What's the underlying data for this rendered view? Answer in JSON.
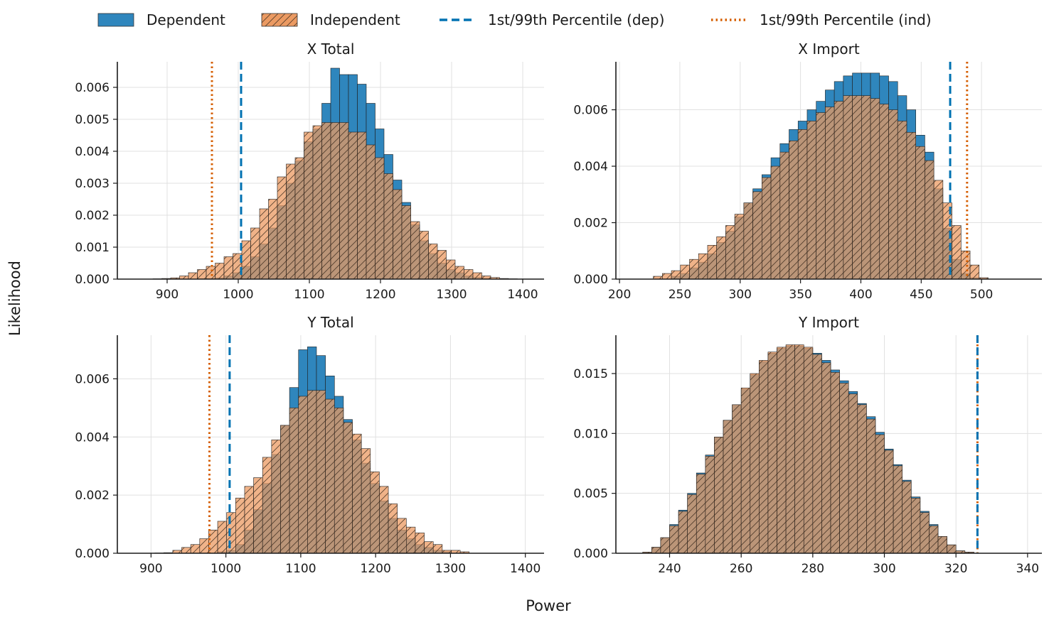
{
  "figure": {
    "xlabel": "Power",
    "ylabel": "Likelihood"
  },
  "legend": [
    {
      "label": "Dependent",
      "kind": "bar",
      "color": "#2f86bd"
    },
    {
      "label": "Independent",
      "kind": "hatched-bar",
      "color": "#eb9a62"
    },
    {
      "label": "1st/99th Percentile (dep)",
      "kind": "dashed-line",
      "color": "#0072b2"
    },
    {
      "label": "1st/99th Percentile (ind)",
      "kind": "dotted-line",
      "color": "#d55e00"
    }
  ],
  "colors": {
    "dependent": "#2f86bd",
    "independent": "#eb9a62",
    "overlap": "#8c6a4d",
    "dep_line": "#0072b2",
    "ind_line": "#d55e00",
    "grid": "#e1e1e1"
  },
  "chart_data": [
    {
      "type": "histogram",
      "title": "X Total",
      "xlim": [
        830,
        1430
      ],
      "ylim": [
        0,
        0.0068
      ],
      "xticks": [
        900,
        1000,
        1100,
        1200,
        1300,
        1400
      ],
      "xtick_labels": [
        "900",
        "1000",
        "1100",
        "1200",
        "1300",
        "1400"
      ],
      "yticks": [
        0,
        0.001,
        0.002,
        0.003,
        0.004,
        0.005,
        0.006
      ],
      "ytick_labels": [
        "0.000",
        "0.001",
        "0.002",
        "0.003",
        "0.004",
        "0.005",
        "0.006"
      ],
      "bin_start": 880,
      "bin_width": 12.5,
      "dependent": [
        0,
        0,
        0,
        0,
        0,
        1e-05,
        2e-05,
        4e-05,
        0.0001,
        0.0002,
        0.0004,
        0.0007,
        0.0011,
        0.0016,
        0.0023,
        0.003,
        0.0037,
        0.0043,
        0.0047,
        0.0055,
        0.0066,
        0.0064,
        0.0064,
        0.0061,
        0.0055,
        0.0047,
        0.0039,
        0.0031,
        0.0024,
        0.0017,
        0.0012,
        0.0008,
        0.0005,
        0.0003,
        0.0002,
        0.0001,
        5e-05,
        2e-05,
        0,
        0,
        0,
        0,
        0
      ],
      "independent": [
        1e-05,
        2e-05,
        4e-05,
        0.0001,
        0.0002,
        0.0003,
        0.0004,
        0.0005,
        0.0007,
        0.0008,
        0.0012,
        0.0016,
        0.0022,
        0.0025,
        0.0032,
        0.0036,
        0.0038,
        0.0046,
        0.0048,
        0.0049,
        0.0049,
        0.0049,
        0.0046,
        0.0046,
        0.0042,
        0.0038,
        0.0033,
        0.0028,
        0.0023,
        0.0018,
        0.0015,
        0.0011,
        0.0009,
        0.0006,
        0.0004,
        0.0003,
        0.0002,
        0.0001,
        5e-05,
        2e-05,
        1e-05,
        0,
        0
      ],
      "dep_percentiles": [
        1004
      ],
      "ind_percentiles": [
        963
      ]
    },
    {
      "type": "histogram",
      "title": "X Import",
      "xlim": [
        197,
        550
      ],
      "ylim": [
        0,
        0.0077
      ],
      "xticks": [
        200,
        250,
        300,
        350,
        400,
        450,
        500
      ],
      "xtick_labels": [
        "200",
        "250",
        "300",
        "350",
        "400",
        "450",
        "500"
      ],
      "yticks": [
        0,
        0.002,
        0.004,
        0.006
      ],
      "ytick_labels": [
        "0.000",
        "0.002",
        "0.004",
        "0.006"
      ],
      "bin_start": 228,
      "bin_width": 7.5,
      "dependent": [
        0,
        0,
        0.0001,
        0.0002,
        0.0004,
        0.0006,
        0.0009,
        0.0013,
        0.0017,
        0.0022,
        0.0027,
        0.0032,
        0.0037,
        0.0043,
        0.0048,
        0.0053,
        0.0056,
        0.006,
        0.0063,
        0.0067,
        0.007,
        0.0072,
        0.0073,
        0.0073,
        0.0073,
        0.0072,
        0.007,
        0.0065,
        0.006,
        0.0051,
        0.0045,
        0.0032,
        0.0018,
        0.0007,
        0.0002,
        5e-05,
        0
      ],
      "independent": [
        0.0001,
        0.0002,
        0.0003,
        0.0005,
        0.0007,
        0.0009,
        0.0012,
        0.0015,
        0.0019,
        0.0023,
        0.0027,
        0.0031,
        0.0036,
        0.004,
        0.0045,
        0.0049,
        0.0053,
        0.0056,
        0.0059,
        0.0061,
        0.0063,
        0.0065,
        0.0065,
        0.0065,
        0.0064,
        0.0062,
        0.006,
        0.0056,
        0.0052,
        0.0047,
        0.0042,
        0.0035,
        0.0027,
        0.0019,
        0.001,
        0.0005,
        5e-05
      ],
      "dep_percentiles": [
        474
      ],
      "ind_percentiles": [
        488
      ]
    },
    {
      "type": "histogram",
      "title": "Y Total",
      "xlim": [
        855,
        1425
      ],
      "ylim": [
        0,
        0.0075
      ],
      "xticks": [
        900,
        1000,
        1100,
        1200,
        1300,
        1400
      ],
      "xtick_labels": [
        "900",
        "1000",
        "1100",
        "1200",
        "1300",
        "1400"
      ],
      "yticks": [
        0,
        0.002,
        0.004,
        0.006
      ],
      "ytick_labels": [
        "0.000",
        "0.002",
        "0.004",
        "0.006"
      ],
      "bin_start": 905,
      "bin_width": 12,
      "dependent": [
        0,
        0,
        0,
        0,
        0,
        0,
        0,
        5e-05,
        0.0001,
        0.0003,
        0.0008,
        0.0015,
        0.0024,
        0.0034,
        0.0044,
        0.0057,
        0.007,
        0.0071,
        0.0068,
        0.0061,
        0.0054,
        0.0046,
        0.0039,
        0.0031,
        0.0024,
        0.0018,
        0.0012,
        0.0008,
        0.0005,
        0.0003,
        0.0002,
        0.0001,
        5e-05,
        0,
        0,
        0,
        0
      ],
      "independent": [
        1e-05,
        2e-05,
        0.0001,
        0.0002,
        0.0003,
        0.0005,
        0.0008,
        0.0011,
        0.0014,
        0.0019,
        0.0023,
        0.0026,
        0.0033,
        0.0039,
        0.0044,
        0.005,
        0.0054,
        0.0056,
        0.0056,
        0.0053,
        0.005,
        0.0045,
        0.0041,
        0.0036,
        0.0028,
        0.0023,
        0.0017,
        0.0012,
        0.0009,
        0.0007,
        0.0004,
        0.0003,
        0.0001,
        0.0001,
        5e-05,
        0,
        0
      ],
      "dep_percentiles": [
        1005
      ],
      "ind_percentiles": [
        978
      ]
    },
    {
      "type": "histogram",
      "title": "Y Import",
      "xlim": [
        225,
        344
      ],
      "ylim": [
        0,
        0.0182
      ],
      "xticks": [
        240,
        260,
        280,
        300,
        320,
        340
      ],
      "xtick_labels": [
        "240",
        "260",
        "280",
        "300",
        "320",
        "340"
      ],
      "yticks": [
        0,
        0.005,
        0.01,
        0.015
      ],
      "ytick_labels": [
        "0.000",
        "0.005",
        "0.010",
        "0.015"
      ],
      "bin_start": 232.5,
      "bin_width": 2.5,
      "dependent": [
        0.0001,
        0.0005,
        0.0013,
        0.0024,
        0.0036,
        0.005,
        0.0067,
        0.0082,
        0.0097,
        0.0111,
        0.0124,
        0.0137,
        0.0149,
        0.016,
        0.0167,
        0.0171,
        0.0173,
        0.0173,
        0.0171,
        0.0167,
        0.0161,
        0.0153,
        0.0144,
        0.0135,
        0.0125,
        0.0114,
        0.0101,
        0.0087,
        0.0074,
        0.0061,
        0.0047,
        0.0035,
        0.0024,
        0.0014,
        0.0007,
        0.0002,
        0.0001
      ],
      "independent": [
        0.0001,
        0.0005,
        0.0013,
        0.0023,
        0.0035,
        0.0049,
        0.0066,
        0.0081,
        0.0097,
        0.0111,
        0.0124,
        0.0138,
        0.015,
        0.0161,
        0.0168,
        0.0172,
        0.0174,
        0.0174,
        0.0172,
        0.0166,
        0.0159,
        0.0151,
        0.0142,
        0.0133,
        0.0124,
        0.0112,
        0.0099,
        0.0086,
        0.0073,
        0.006,
        0.0046,
        0.0034,
        0.0023,
        0.0014,
        0.0007,
        0.0002,
        0.0001
      ],
      "dep_percentiles": [
        326
      ],
      "ind_percentiles": [
        326
      ]
    }
  ]
}
